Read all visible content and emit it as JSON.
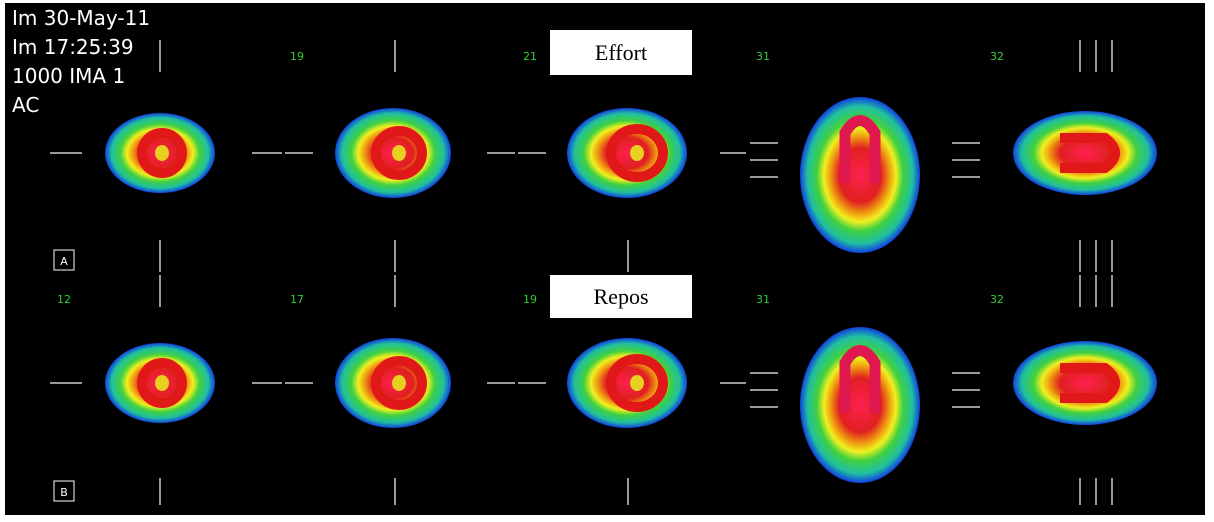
{
  "header": {
    "lines": [
      "Im 30-May-11",
      "Im 17:25:39",
      "1000 IMA 1",
      "AC"
    ]
  },
  "rows": [
    {
      "label": "Effort",
      "marker": "A",
      "slices": [
        "19",
        "21",
        "31",
        "32"
      ]
    },
    {
      "label": "Repos",
      "marker": "B",
      "slices": [
        "12",
        "17",
        "19",
        "31",
        "32"
      ]
    }
  ]
}
